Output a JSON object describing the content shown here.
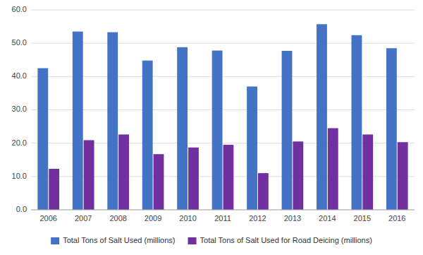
{
  "chart_data": {
    "type": "bar",
    "categories": [
      "2006",
      "2007",
      "2008",
      "2009",
      "2010",
      "2011",
      "2012",
      "2013",
      "2014",
      "2015",
      "2016"
    ],
    "series": [
      {
        "name": "Total Tons of Salt Used (millions)",
        "color": "#4472C4",
        "values": [
          42.5,
          53.5,
          53.3,
          44.8,
          48.8,
          47.8,
          37.0,
          47.7,
          55.7,
          52.4,
          48.5
        ]
      },
      {
        "name": "Total Tons of Salt Used for Road Deicing (millions)",
        "color": "#7030A0",
        "values": [
          12.3,
          20.9,
          22.6,
          16.7,
          18.7,
          19.5,
          11.0,
          20.5,
          24.5,
          22.6,
          20.3
        ]
      }
    ],
    "ylim": [
      0,
      60
    ],
    "yticks": [
      {
        "value": 0,
        "label": "0.0"
      },
      {
        "value": 10,
        "label": "10.0"
      },
      {
        "value": 20,
        "label": "20.0"
      },
      {
        "value": 30,
        "label": "30.0"
      },
      {
        "value": 40,
        "label": "40.0"
      },
      {
        "value": 50,
        "label": "50.0"
      },
      {
        "value": 60,
        "label": "60.0"
      }
    ],
    "grid": true,
    "legend": "bottom"
  }
}
